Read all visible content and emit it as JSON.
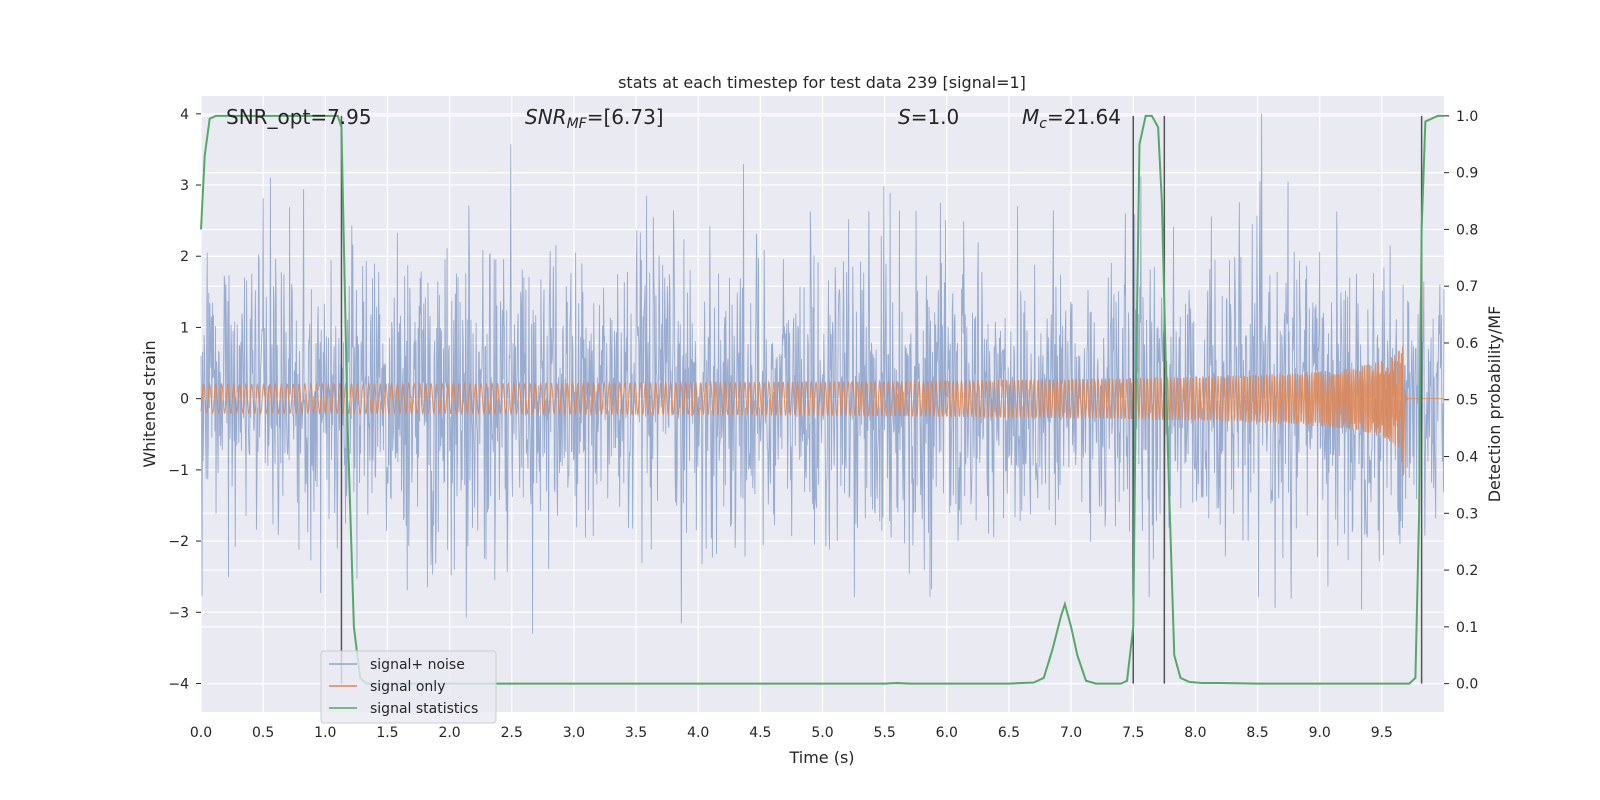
{
  "chart_data": {
    "type": "line",
    "title": "stats at each timestep for test data 239 [signal=1]",
    "xlabel": "Time (s)",
    "ylabel": "Whitened strain",
    "y2label": "Detection probability/MF",
    "xlim": [
      0.0,
      10.0
    ],
    "ylim": [
      -4.4,
      4.25
    ],
    "y2lim": [
      -0.05,
      1.035
    ],
    "x_ticks": [
      "0.0",
      "0.5",
      "1.0",
      "1.5",
      "2.0",
      "2.5",
      "3.0",
      "3.5",
      "4.0",
      "4.5",
      "5.0",
      "5.5",
      "6.0",
      "6.5",
      "7.0",
      "7.5",
      "8.0",
      "8.5",
      "9.0",
      "9.5"
    ],
    "y_ticks": [
      "4",
      "3",
      "2",
      "1",
      "0",
      "−1",
      "−2",
      "−3",
      "−4"
    ],
    "y2_ticks": [
      "1.0",
      "0.9",
      "0.8",
      "0.7",
      "0.6",
      "0.5",
      "0.4",
      "0.3",
      "0.2",
      "0.1",
      "0.0"
    ],
    "grid": true,
    "legend_position": "lower-left",
    "annotations": {
      "snr_opt": "SNR_opt=7.95",
      "snr_mf_label": "SNR",
      "snr_mf_sub": "MF",
      "snr_mf_value": "=[6.73]",
      "s_label": "S",
      "s_value": "=1.0",
      "mc_label": "M",
      "mc_sub": "c",
      "mc_value": "=21.64"
    },
    "series": [
      {
        "name": "signal+ noise",
        "color": "#8fa4cc",
        "kind": "noise",
        "amplitude_sigma": 1.0
      },
      {
        "name": "signal only",
        "color": "#dd8452",
        "kind": "chirp",
        "merger_time": 9.68,
        "peak_amplitude": 1.4
      },
      {
        "name": "signal statistics",
        "color": "#55a868",
        "axis": "right",
        "x": [
          0.0,
          0.03,
          0.07,
          0.12,
          0.2,
          0.4,
          0.6,
          0.8,
          1.0,
          1.1,
          1.13,
          1.18,
          1.23,
          1.28,
          1.33,
          1.5,
          2.0,
          3.0,
          4.0,
          5.0,
          5.5,
          5.6,
          5.7,
          6.0,
          6.5,
          6.7,
          6.78,
          6.85,
          6.92,
          6.95,
          7.0,
          7.05,
          7.12,
          7.2,
          7.3,
          7.4,
          7.45,
          7.5,
          7.52,
          7.55,
          7.6,
          7.65,
          7.7,
          7.73,
          7.78,
          7.83,
          7.88,
          7.95,
          8.05,
          8.2,
          8.5,
          9.0,
          9.5,
          9.72,
          9.77,
          9.8,
          9.82,
          9.85,
          9.9,
          9.95,
          10.0
        ],
        "values": [
          0.8,
          0.93,
          0.995,
          1.0,
          1.0,
          1.0,
          1.0,
          1.0,
          1.0,
          1.0,
          0.98,
          0.45,
          0.1,
          0.01,
          0.0,
          0.0,
          0.0,
          0.0,
          0.0,
          0.0,
          0.0,
          0.001,
          0.0,
          0.0,
          0.0,
          0.002,
          0.01,
          0.06,
          0.12,
          0.14,
          0.1,
          0.05,
          0.005,
          0.0,
          0.0,
          0.0,
          0.005,
          0.1,
          0.5,
          0.95,
          1.0,
          1.0,
          0.98,
          0.85,
          0.4,
          0.05,
          0.01,
          0.003,
          0.001,
          0.001,
          0.0,
          0.0,
          0.0,
          0.0,
          0.01,
          0.3,
          0.8,
          0.99,
          0.995,
          1.0,
          1.0
        ]
      }
    ],
    "vertical_markers": [
      1.13,
      7.5,
      7.75,
      9.82
    ]
  }
}
